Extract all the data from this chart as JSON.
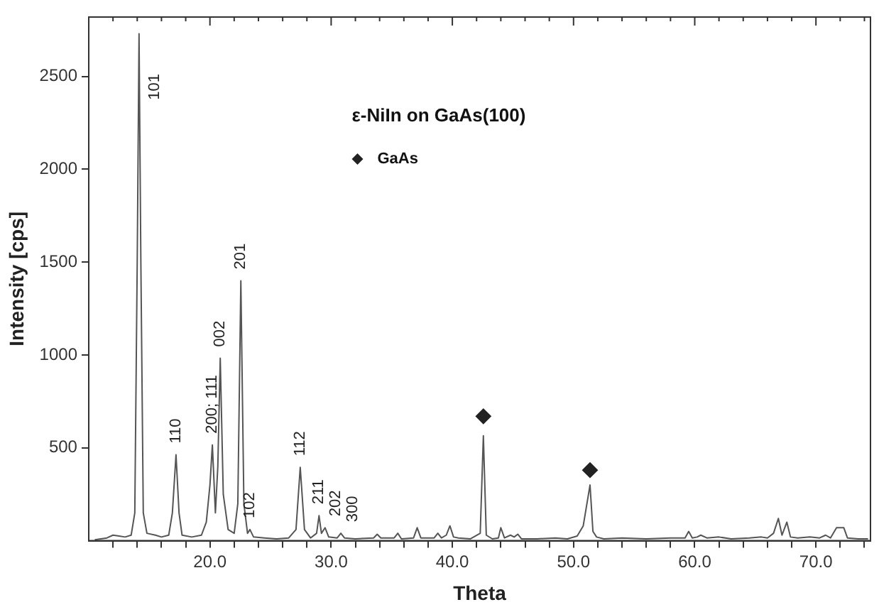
{
  "chart_data": {
    "type": "line",
    "xlabel": "Theta",
    "ylabel": "Intensity [cps]",
    "legend_title": "ε-NiIn on GaAs(100)",
    "legend": "top",
    "grid": false,
    "xlim": [
      10,
      74.5
    ],
    "ylim": [
      0,
      2820
    ],
    "xticks": [
      {
        "value": 12,
        "label": null
      },
      {
        "value": 14,
        "label": null
      },
      {
        "value": 16,
        "label": null
      },
      {
        "value": 18,
        "label": null
      },
      {
        "value": 20,
        "label": "20.0"
      },
      {
        "value": 22,
        "label": null
      },
      {
        "value": 24,
        "label": null
      },
      {
        "value": 26,
        "label": null
      },
      {
        "value": 28,
        "label": null
      },
      {
        "value": 30,
        "label": "30.0"
      },
      {
        "value": 32,
        "label": null
      },
      {
        "value": 34,
        "label": null
      },
      {
        "value": 36,
        "label": null
      },
      {
        "value": 38,
        "label": null
      },
      {
        "value": 40,
        "label": "40.0"
      },
      {
        "value": 42,
        "label": null
      },
      {
        "value": 44,
        "label": null
      },
      {
        "value": 46,
        "label": null
      },
      {
        "value": 48,
        "label": null
      },
      {
        "value": 50,
        "label": "50.0"
      },
      {
        "value": 52,
        "label": null
      },
      {
        "value": 54,
        "label": null
      },
      {
        "value": 56,
        "label": null
      },
      {
        "value": 58,
        "label": null
      },
      {
        "value": 60,
        "label": "60.0"
      },
      {
        "value": 62,
        "label": null
      },
      {
        "value": 64,
        "label": null
      },
      {
        "value": 66,
        "label": null
      },
      {
        "value": 68,
        "label": null
      },
      {
        "value": 70,
        "label": "70.0"
      },
      {
        "value": 72,
        "label": null
      },
      {
        "value": 74,
        "label": null
      }
    ],
    "yticks": [
      500,
      1000,
      1500,
      2000,
      2500
    ],
    "series": [
      {
        "color": "#555555",
        "marker": "none",
        "line_style": "solid",
        "x": [
          10.5,
          11.5,
          12,
          12.5,
          13,
          13.5,
          13.8,
          14.0,
          14.15,
          14.3,
          14.5,
          14.8,
          15.5,
          16,
          16.6,
          16.9,
          17.2,
          17.45,
          17.7,
          18.5,
          19.3,
          19.7,
          20.0,
          20.2,
          20.45,
          20.65,
          20.85,
          21.1,
          21.5,
          22.0,
          22.3,
          22.55,
          22.8,
          23.1,
          23.3,
          23.6,
          24.5,
          25.5,
          26.5,
          27.1,
          27.45,
          27.8,
          28.3,
          28.8,
          29.0,
          29.2,
          29.5,
          29.8,
          30.5,
          30.8,
          31.1,
          32,
          33.5,
          33.8,
          34.1,
          35.2,
          35.5,
          35.8,
          36.8,
          37.1,
          37.4,
          38.5,
          38.8,
          39.1,
          39.5,
          39.8,
          40.1,
          40.5,
          41.5,
          42.3,
          42.56,
          42.8,
          43.3,
          43.8,
          44.0,
          44.3,
          44.8,
          45.1,
          45.4,
          45.7,
          47,
          48.5,
          49.5,
          50.3,
          50.8,
          51.36,
          51.6,
          51.9,
          52.5,
          54,
          56,
          58,
          59.2,
          59.5,
          59.8,
          60.2,
          60.5,
          61,
          62,
          63,
          64.5,
          65.5,
          66,
          66.5,
          66.9,
          67.2,
          67.6,
          67.9,
          68.5,
          69.5,
          70.3,
          70.8,
          71.2,
          71.7,
          72.3,
          72.6,
          73.5,
          74.3
        ],
        "values": [
          5,
          15,
          30,
          25,
          20,
          30,
          150,
          1500,
          2730,
          1500,
          150,
          40,
          30,
          20,
          30,
          150,
          463,
          150,
          30,
          20,
          30,
          100,
          300,
          516,
          150,
          400,
          983,
          250,
          60,
          40,
          200,
          1400,
          200,
          40,
          60,
          20,
          15,
          10,
          15,
          60,
          395,
          60,
          15,
          40,
          135,
          40,
          70,
          20,
          15,
          40,
          15,
          10,
          15,
          35,
          15,
          15,
          40,
          10,
          15,
          70,
          15,
          15,
          40,
          15,
          30,
          80,
          20,
          15,
          10,
          40,
          565,
          30,
          10,
          15,
          70,
          15,
          30,
          20,
          35,
          10,
          10,
          15,
          10,
          25,
          80,
          300,
          50,
          20,
          10,
          15,
          10,
          15,
          15,
          50,
          15,
          20,
          30,
          15,
          20,
          10,
          15,
          20,
          15,
          40,
          120,
          30,
          100,
          20,
          15,
          20,
          15,
          30,
          15,
          70,
          70,
          15,
          10,
          10
        ]
      },
      {
        "type": "scatter",
        "name": "GaAs",
        "color": "#222222",
        "marker": "diamond",
        "x": [
          42.56,
          51.36
        ],
        "values": [
          670,
          380
        ]
      }
    ],
    "annotations": [
      {
        "text": "101",
        "x": 14.15,
        "y": 2730
      },
      {
        "text": "110",
        "x": 17.2,
        "y": 463
      },
      {
        "text": "200; 111",
        "x": 20.2,
        "y": 516
      },
      {
        "text": "002",
        "x": 20.85,
        "y": 983
      },
      {
        "text": "201",
        "x": 22.55,
        "y": 1400
      },
      {
        "text": "102",
        "x": 23.3,
        "y": 60
      },
      {
        "text": "112",
        "x": 27.45,
        "y": 395
      },
      {
        "text": "211",
        "x": 29.0,
        "y": 135
      },
      {
        "text": "202",
        "x": 29.5,
        "y": 70
      },
      {
        "text": "300",
        "x": 30.8,
        "y": 40
      }
    ]
  }
}
